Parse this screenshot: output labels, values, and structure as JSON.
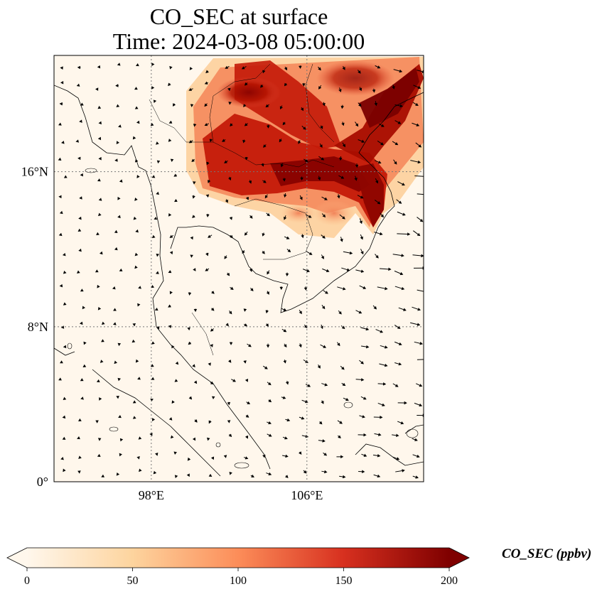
{
  "title": {
    "line1": "CO_SEC at surface",
    "line2": "Time: 2024-03-08 05:00:00"
  },
  "map": {
    "projection": "PlateCarree",
    "lon_range": [
      93,
      112
    ],
    "lat_range": [
      0,
      22
    ],
    "gridlines": "dotted",
    "lat_ticks": [
      {
        "value": 0,
        "label": "0°"
      },
      {
        "value": 8,
        "label": "8°N"
      },
      {
        "value": 16,
        "label": "16°N"
      }
    ],
    "lon_ticks": [
      {
        "value": 98,
        "label": "98°E"
      },
      {
        "value": 106,
        "label": "106°E"
      }
    ],
    "field": "CO_SEC",
    "wind_vectors": true
  },
  "colorbar": {
    "label": "CO_SEC (ppbv)",
    "colormap": "OrRd",
    "vmin": 0,
    "vmax": 200,
    "extend": "both",
    "ticks": [
      {
        "value": 0,
        "label": "0"
      },
      {
        "value": 50,
        "label": "50"
      },
      {
        "value": 100,
        "label": "100"
      },
      {
        "value": 150,
        "label": "150"
      },
      {
        "value": 200,
        "label": "200"
      }
    ],
    "colors": [
      "#fff7ec",
      "#fdd49e",
      "#fc8d59",
      "#d7301f",
      "#7f0000"
    ]
  }
}
